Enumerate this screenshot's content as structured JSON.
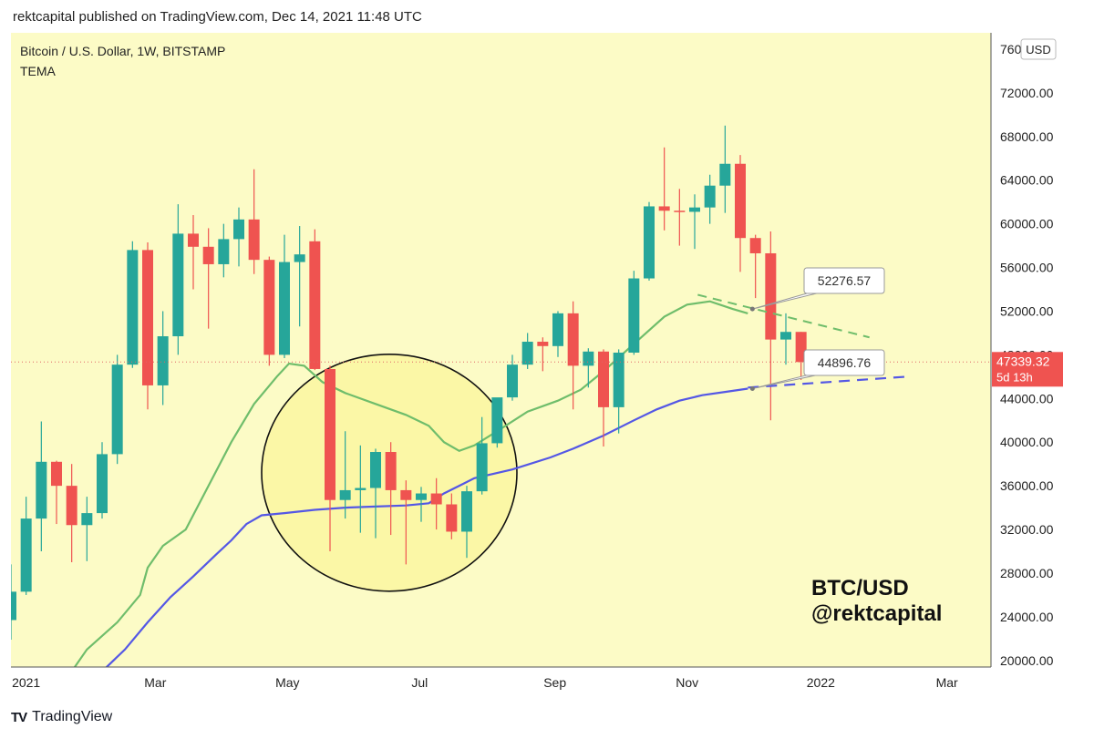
{
  "header": {
    "publish_line": "rektcapital published on TradingView.com, Dec 14, 2021 11:48 UTC"
  },
  "chart_data": {
    "type": "candlestick",
    "title": "Bitcoin / U.S. Dollar, 1W, BITSTAMP",
    "indicator": "TEMA",
    "currency": "USD",
    "ylim": [
      19400,
      77500
    ],
    "y_ticks": [
      20000,
      24000,
      28000,
      32000,
      36000,
      40000,
      44000,
      48000,
      52000,
      56000,
      60000,
      64000,
      68000,
      72000,
      76000
    ],
    "y_tick_labels": [
      "20000.00",
      "24000.00",
      "28000.00",
      "32000.00",
      "36000.00",
      "40000.00",
      "44000.00",
      "48000.00",
      "52000.00",
      "56000.00",
      "60000.00",
      "64000.00",
      "68000.00",
      "72000.00",
      "76000.00"
    ],
    "x_labels": [
      {
        "label": "2021",
        "week": 2
      },
      {
        "label": "Mar",
        "week": 10.5
      },
      {
        "label": "May",
        "week": 19.2
      },
      {
        "label": "Jul",
        "week": 27.9
      },
      {
        "label": "Sep",
        "week": 36.8
      },
      {
        "label": "Nov",
        "week": 45.5
      },
      {
        "label": "2022",
        "week": 54.3
      },
      {
        "label": "Mar",
        "week": 62.6
      }
    ],
    "weeks_visible": [
      1,
      65.5
    ],
    "candles": [
      {
        "o": 23700,
        "h": 28800,
        "l": 21900,
        "c": 26300
      },
      {
        "o": 26300,
        "h": 35000,
        "l": 26000,
        "c": 33000
      },
      {
        "o": 33000,
        "h": 41900,
        "l": 30000,
        "c": 38200
      },
      {
        "o": 38200,
        "h": 38300,
        "l": 32500,
        "c": 36000
      },
      {
        "o": 36000,
        "h": 38000,
        "l": 29000,
        "c": 32400
      },
      {
        "o": 32400,
        "h": 35000,
        "l": 29100,
        "c": 33500
      },
      {
        "o": 33500,
        "h": 40000,
        "l": 33000,
        "c": 38900
      },
      {
        "o": 38900,
        "h": 48000,
        "l": 38000,
        "c": 47100
      },
      {
        "o": 47100,
        "h": 58400,
        "l": 46800,
        "c": 57600
      },
      {
        "o": 57600,
        "h": 58300,
        "l": 43000,
        "c": 45200
      },
      {
        "o": 45200,
        "h": 52000,
        "l": 43400,
        "c": 49700
      },
      {
        "o": 49700,
        "h": 61800,
        "l": 48000,
        "c": 59100
      },
      {
        "o": 59100,
        "h": 60800,
        "l": 54000,
        "c": 57900
      },
      {
        "o": 57900,
        "h": 59600,
        "l": 50400,
        "c": 56300
      },
      {
        "o": 56300,
        "h": 60000,
        "l": 55100,
        "c": 58600
      },
      {
        "o": 58600,
        "h": 61500,
        "l": 56100,
        "c": 60400
      },
      {
        "o": 60400,
        "h": 65000,
        "l": 55400,
        "c": 56700
      },
      {
        "o": 56700,
        "h": 57000,
        "l": 47000,
        "c": 48000
      },
      {
        "o": 48000,
        "h": 59000,
        "l": 47700,
        "c": 56500
      },
      {
        "o": 56500,
        "h": 59800,
        "l": 50600,
        "c": 57200
      },
      {
        "o": 58400,
        "h": 59500,
        "l": 46600,
        "c": 46700
      },
      {
        "o": 46700,
        "h": 47000,
        "l": 30000,
        "c": 34700
      },
      {
        "o": 34700,
        "h": 41000,
        "l": 33000,
        "c": 35600
      },
      {
        "o": 35600,
        "h": 39700,
        "l": 31700,
        "c": 35800
      },
      {
        "o": 35800,
        "h": 39400,
        "l": 31200,
        "c": 39100
      },
      {
        "o": 39100,
        "h": 40000,
        "l": 31500,
        "c": 35600
      },
      {
        "o": 35600,
        "h": 36500,
        "l": 28800,
        "c": 34700
      },
      {
        "o": 34700,
        "h": 35900,
        "l": 32700,
        "c": 35300
      },
      {
        "o": 35300,
        "h": 36700,
        "l": 32000,
        "c": 34300
      },
      {
        "o": 34300,
        "h": 35300,
        "l": 31100,
        "c": 31800
      },
      {
        "o": 31800,
        "h": 36000,
        "l": 29400,
        "c": 35500
      },
      {
        "o": 35500,
        "h": 42300,
        "l": 35200,
        "c": 39900
      },
      {
        "o": 39900,
        "h": 44000,
        "l": 39500,
        "c": 44100
      },
      {
        "o": 44100,
        "h": 48000,
        "l": 43800,
        "c": 47100
      },
      {
        "o": 47100,
        "h": 50000,
        "l": 46700,
        "c": 49200
      },
      {
        "o": 49200,
        "h": 49600,
        "l": 46500,
        "c": 48800
      },
      {
        "o": 48800,
        "h": 52000,
        "l": 47800,
        "c": 51800
      },
      {
        "o": 51800,
        "h": 52900,
        "l": 43000,
        "c": 47000
      },
      {
        "o": 47000,
        "h": 48600,
        "l": 45000,
        "c": 48300
      },
      {
        "o": 48300,
        "h": 48500,
        "l": 39600,
        "c": 43200
      },
      {
        "o": 43200,
        "h": 48500,
        "l": 40800,
        "c": 48200
      },
      {
        "o": 48200,
        "h": 55700,
        "l": 48000,
        "c": 55000
      },
      {
        "o": 55000,
        "h": 62000,
        "l": 54800,
        "c": 61600
      },
      {
        "o": 61600,
        "h": 67000,
        "l": 59400,
        "c": 61200
      },
      {
        "o": 61200,
        "h": 63200,
        "l": 58000,
        "c": 61100
      },
      {
        "o": 61100,
        "h": 62700,
        "l": 57700,
        "c": 61500
      },
      {
        "o": 61500,
        "h": 64500,
        "l": 60000,
        "c": 63500
      },
      {
        "o": 63500,
        "h": 69000,
        "l": 61000,
        "c": 65500
      },
      {
        "o": 65500,
        "h": 66300,
        "l": 55600,
        "c": 58700
      },
      {
        "o": 58700,
        "h": 59000,
        "l": 53200,
        "c": 57300
      },
      {
        "o": 57300,
        "h": 59300,
        "l": 42000,
        "c": 49400
      },
      {
        "o": 49400,
        "h": 51800,
        "l": 47100,
        "c": 50100
      },
      {
        "o": 50100,
        "h": 50100,
        "l": 45700,
        "c": 47339
      }
    ],
    "green_line": [
      [
        5,
        19000
      ],
      [
        6,
        21000
      ],
      [
        8,
        23500
      ],
      [
        9.5,
        26000
      ],
      [
        10,
        28500
      ],
      [
        11,
        30500
      ],
      [
        12.5,
        32000
      ],
      [
        14,
        36000
      ],
      [
        15.5,
        40000
      ],
      [
        17,
        43500
      ],
      [
        18.5,
        46000
      ],
      [
        19.3,
        47200
      ],
      [
        20.3,
        47000
      ],
      [
        21.5,
        45500
      ],
      [
        23,
        44500
      ],
      [
        25,
        43500
      ],
      [
        27,
        42500
      ],
      [
        28.5,
        41500
      ],
      [
        29.5,
        40000
      ],
      [
        30.5,
        39200
      ],
      [
        31.5,
        39700
      ],
      [
        33,
        41000
      ],
      [
        35,
        42800
      ],
      [
        37,
        43800
      ],
      [
        38.5,
        44800
      ],
      [
        40,
        46500
      ],
      [
        42,
        49000
      ],
      [
        44,
        51500
      ],
      [
        45.5,
        52600
      ],
      [
        47,
        52900
      ],
      [
        48.5,
        52200
      ],
      [
        49.5,
        51800
      ]
    ],
    "blue_line": [
      [
        7,
        19000
      ],
      [
        8.5,
        21000
      ],
      [
        10,
        23500
      ],
      [
        11.5,
        25800
      ],
      [
        13,
        27700
      ],
      [
        14.5,
        29700
      ],
      [
        15.5,
        31000
      ],
      [
        16.5,
        32500
      ],
      [
        17.5,
        33300
      ],
      [
        19,
        33500
      ],
      [
        21,
        33800
      ],
      [
        23,
        34000
      ],
      [
        25,
        34100
      ],
      [
        27,
        34200
      ],
      [
        28.5,
        34400
      ],
      [
        29.5,
        35300
      ],
      [
        31.5,
        36700
      ],
      [
        34,
        37500
      ],
      [
        36.5,
        38600
      ],
      [
        38,
        39400
      ],
      [
        40,
        40600
      ],
      [
        42,
        42000
      ],
      [
        43.5,
        43000
      ],
      [
        45,
        43800
      ],
      [
        46.5,
        44300
      ],
      [
        48,
        44600
      ],
      [
        49.5,
        44900
      ]
    ],
    "green_trend": [
      [
        46.2,
        53500
      ],
      [
        57.5,
        49600
      ]
    ],
    "blue_trend": [
      [
        49.5,
        45000
      ],
      [
        60,
        46000
      ]
    ],
    "current_price": "47339.32",
    "countdown": "5d 13h",
    "callouts": [
      {
        "label": "52276.57",
        "color": "green"
      },
      {
        "label": "44896.76",
        "color": "blue"
      }
    ],
    "annotation_lines": [
      "BTC/USD",
      "@rektcapital"
    ],
    "colors": {
      "background": "#fcfbc6",
      "up": "#26a69a",
      "down": "#ef5350",
      "green_line": "#6fbd6b",
      "blue_line": "#5457e5",
      "price_label": "#ef5350"
    }
  },
  "footer": {
    "brand": "TradingView",
    "logo_mark": "TV"
  }
}
